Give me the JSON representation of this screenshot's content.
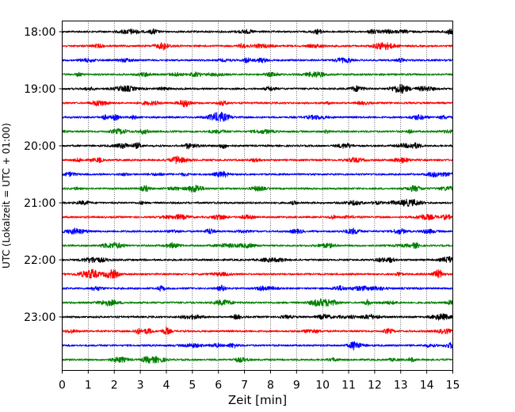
{
  "chart_data": {
    "type": "line",
    "title": "",
    "xlabel": "Zeit  [min]",
    "ylabel": "UTC (Lokalzeit = UTC + 01:00)",
    "xlim": [
      0,
      15
    ],
    "x_ticks": [
      "0",
      "1",
      "2",
      "3",
      "4",
      "5",
      "6",
      "7",
      "8",
      "9",
      "10",
      "11",
      "12",
      "13",
      "14",
      "15"
    ],
    "y_ticks": [
      "18:00",
      "19:00",
      "20:00",
      "21:00",
      "22:00",
      "23:00"
    ],
    "grid": "vertical dotted at each minute",
    "legend": "none",
    "trace_interval_minutes": 15,
    "trace_start": "18:00",
    "trace_end": "23:45",
    "trace_colors": [
      "#000000",
      "#ff0000",
      "#0000ff",
      "#008000"
    ],
    "traces": [
      {
        "start": "18:00",
        "color": "#000000"
      },
      {
        "start": "18:15",
        "color": "#ff0000"
      },
      {
        "start": "18:30",
        "color": "#0000ff"
      },
      {
        "start": "18:45",
        "color": "#008000"
      },
      {
        "start": "19:00",
        "color": "#000000"
      },
      {
        "start": "19:15",
        "color": "#ff0000"
      },
      {
        "start": "19:30",
        "color": "#0000ff"
      },
      {
        "start": "19:45",
        "color": "#008000"
      },
      {
        "start": "20:00",
        "color": "#000000"
      },
      {
        "start": "20:15",
        "color": "#ff0000"
      },
      {
        "start": "20:30",
        "color": "#0000ff"
      },
      {
        "start": "20:45",
        "color": "#008000"
      },
      {
        "start": "21:00",
        "color": "#000000"
      },
      {
        "start": "21:15",
        "color": "#ff0000"
      },
      {
        "start": "21:30",
        "color": "#0000ff"
      },
      {
        "start": "21:45",
        "color": "#008000"
      },
      {
        "start": "22:00",
        "color": "#000000"
      },
      {
        "start": "22:15",
        "color": "#ff0000"
      },
      {
        "start": "22:30",
        "color": "#0000ff"
      },
      {
        "start": "22:45",
        "color": "#008000"
      },
      {
        "start": "23:00",
        "color": "#000000"
      },
      {
        "start": "23:15",
        "color": "#ff0000"
      },
      {
        "start": "23:30",
        "color": "#0000ff"
      },
      {
        "start": "23:45",
        "color": "#008000"
      }
    ]
  }
}
